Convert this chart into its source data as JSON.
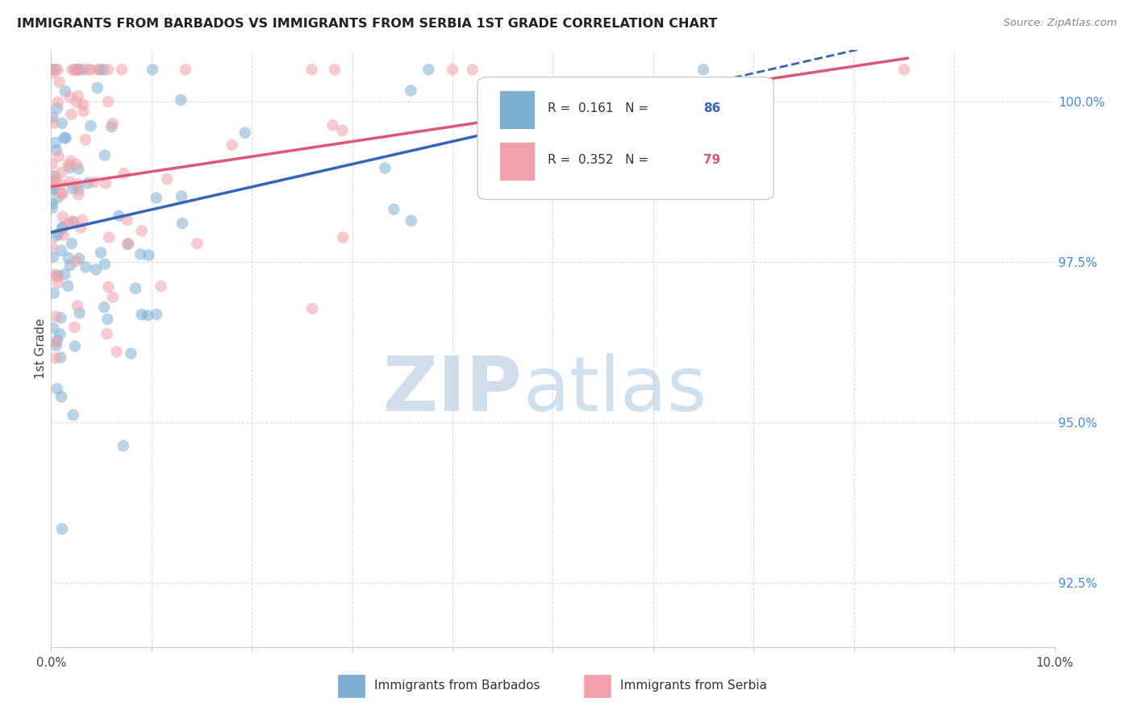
{
  "title": "IMMIGRANTS FROM BARBADOS VS IMMIGRANTS FROM SERBIA 1ST GRADE CORRELATION CHART",
  "source": "Source: ZipAtlas.com",
  "ylabel": "1st Grade",
  "legend_barbados": "Immigrants from Barbados",
  "legend_serbia": "Immigrants from Serbia",
  "r_barbados": 0.161,
  "n_barbados": 86,
  "r_serbia": 0.352,
  "n_serbia": 79,
  "color_barbados": "#7BAFD4",
  "color_serbia": "#F4A0A8",
  "color_barbados_line": "#3366BB",
  "color_serbia_line": "#DD5577",
  "x_min": 0.0,
  "x_max": 10.0,
  "y_min": 91.5,
  "y_max": 100.8,
  "yticks": [
    92.5,
    95.0,
    97.5,
    100.0
  ],
  "watermark_zip": "ZIP",
  "watermark_atlas": "atlas",
  "background_color": "#ffffff"
}
